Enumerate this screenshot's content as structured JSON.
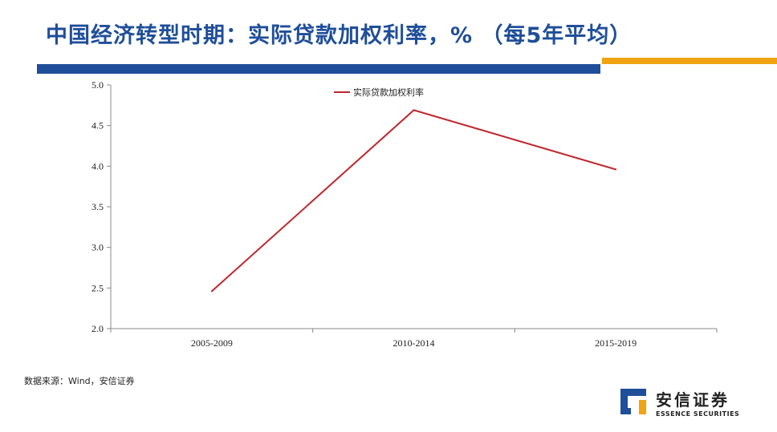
{
  "page": {
    "title": "中国经济转型时期：实际贷款加权利率，% （每5年平均）",
    "source": "数据来源：Wind，安信证券",
    "colors": {
      "title": "#1f4e9a",
      "rule_blue": "#1f4e9a",
      "rule_orange": "#f0a313"
    }
  },
  "logo": {
    "name_cn": "安信证券",
    "name_en": "ESSENCE SECURITIES",
    "colors": {
      "blue": "#1f4e9a",
      "orange": "#f0a313"
    }
  },
  "chart_data": {
    "type": "line",
    "title": "",
    "xlabel": "",
    "ylabel": "",
    "categories": [
      "2005-2009",
      "2010-2014",
      "2015-2019"
    ],
    "series": [
      {
        "name": "实际贷款加权利率",
        "values": [
          2.46,
          4.69,
          3.96
        ],
        "color": "#c0262d"
      }
    ],
    "ylim": [
      2.0,
      5.0
    ],
    "yticks": [
      2.0,
      2.5,
      3.0,
      3.5,
      4.0,
      4.5,
      5.0
    ],
    "ytick_labels": [
      "2.0",
      "2.5",
      "3.0",
      "3.5",
      "4.0",
      "4.5",
      "5.0"
    ],
    "grid": false,
    "legend_position": "top-left"
  }
}
